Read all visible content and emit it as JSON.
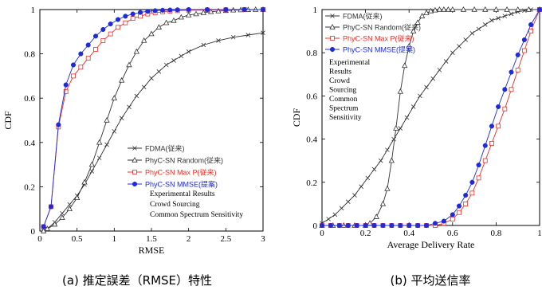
{
  "colors": {
    "black": "#000000",
    "gray": "#333333",
    "red": "#e8302a",
    "blue": "#1f2bd8",
    "axis": "#000000"
  },
  "chart_data": [
    {
      "type": "line",
      "caption": "(a) 推定誤差（RMSE）特性",
      "xlabel": "RMSE",
      "ylabel": "CDF",
      "xlim": [
        0,
        3
      ],
      "ylim": [
        0,
        1
      ],
      "x_ticks": [
        "0",
        "0.5",
        "1",
        "1.5",
        "2",
        "2.5",
        "3"
      ],
      "y_ticks": [
        "0",
        "0.2",
        "0.4",
        "0.6",
        "0.8",
        "1"
      ],
      "legend_position": "center-right",
      "annotation": [
        "Experimental Results",
        "Crowd Sourcing",
        "Common Spectrum Sensitivity"
      ],
      "series": [
        {
          "name": "FDMA(従来)",
          "color": "#333333",
          "marker": "x",
          "x": [
            0.05,
            0.1,
            0.2,
            0.3,
            0.4,
            0.5,
            0.6,
            0.7,
            0.8,
            0.9,
            1.0,
            1.1,
            1.2,
            1.3,
            1.4,
            1.5,
            1.6,
            1.7,
            1.8,
            1.9,
            2.0,
            2.2,
            2.4,
            2.6,
            2.8,
            3.0
          ],
          "y": [
            0.0,
            0.01,
            0.04,
            0.08,
            0.12,
            0.16,
            0.21,
            0.27,
            0.33,
            0.39,
            0.45,
            0.51,
            0.56,
            0.61,
            0.65,
            0.69,
            0.72,
            0.75,
            0.77,
            0.79,
            0.81,
            0.84,
            0.86,
            0.875,
            0.885,
            0.895
          ]
        },
        {
          "name": "PhyC-SN Random(従来)",
          "color": "#333333",
          "marker": "triangle",
          "x": [
            0.05,
            0.1,
            0.2,
            0.3,
            0.4,
            0.5,
            0.6,
            0.7,
            0.8,
            0.9,
            1.0,
            1.1,
            1.2,
            1.3,
            1.4,
            1.5,
            1.6,
            1.7,
            1.8,
            1.9,
            2.0,
            2.1,
            2.2,
            2.3,
            2.4,
            2.5,
            2.6,
            2.7,
            2.8,
            2.9,
            3.0
          ],
          "y": [
            0.0,
            0.01,
            0.03,
            0.06,
            0.1,
            0.15,
            0.22,
            0.3,
            0.4,
            0.5,
            0.6,
            0.68,
            0.75,
            0.81,
            0.86,
            0.89,
            0.92,
            0.94,
            0.95,
            0.965,
            0.975,
            0.98,
            0.985,
            0.99,
            0.993,
            0.995,
            0.997,
            0.998,
            0.999,
            1.0,
            1.0
          ]
        },
        {
          "name": "PhyC-SN Max P(従来)",
          "color": "#e8302a",
          "marker": "square",
          "x": [
            0.05,
            0.15,
            0.25,
            0.35,
            0.45,
            0.55,
            0.65,
            0.75,
            0.85,
            0.95,
            1.05,
            1.15,
            1.25,
            1.35,
            1.45,
            1.55,
            1.65,
            1.75,
            1.85,
            2.0,
            2.25,
            2.5,
            2.75,
            3.0
          ],
          "y": [
            0.02,
            0.11,
            0.47,
            0.63,
            0.7,
            0.74,
            0.78,
            0.82,
            0.86,
            0.89,
            0.92,
            0.94,
            0.96,
            0.97,
            0.98,
            0.985,
            0.99,
            0.993,
            0.995,
            0.997,
            0.998,
            0.999,
            1.0,
            1.0
          ]
        },
        {
          "name": "PhyC-SN MMSE(提案)",
          "color": "#1f2bd8",
          "marker": "dot",
          "x": [
            0.05,
            0.15,
            0.25,
            0.35,
            0.45,
            0.55,
            0.65,
            0.75,
            0.85,
            0.95,
            1.05,
            1.15,
            1.25,
            1.35,
            1.45,
            1.55,
            1.65,
            1.75,
            1.85,
            2.0,
            2.25,
            2.5,
            2.75,
            3.0
          ],
          "y": [
            0.02,
            0.11,
            0.48,
            0.66,
            0.75,
            0.8,
            0.84,
            0.88,
            0.91,
            0.935,
            0.955,
            0.97,
            0.98,
            0.987,
            0.992,
            0.995,
            0.997,
            0.998,
            0.999,
            1.0,
            1.0,
            1.0,
            1.0,
            1.0
          ]
        }
      ]
    },
    {
      "type": "line",
      "caption": "(b) 平均送信率",
      "xlabel": "Average Delivery Rate",
      "ylabel": "CDF",
      "xlim": [
        0,
        1
      ],
      "ylim": [
        0,
        1
      ],
      "x_ticks": [
        "0",
        "0.2",
        "0.4",
        "0.6",
        "0.8",
        "1"
      ],
      "y_ticks": [
        "0",
        "0.2",
        "0.4",
        "0.6",
        "0.8",
        "1"
      ],
      "legend_position": "top-left",
      "annotation": [
        "Experimental",
        "Results",
        "Crowd",
        "Sourcing",
        "Common",
        "Spectrum",
        "Sensitivity"
      ],
      "series": [
        {
          "name": "FDMA(従来)",
          "color": "#333333",
          "marker": "x",
          "x": [
            0.0,
            0.03,
            0.06,
            0.09,
            0.12,
            0.15,
            0.18,
            0.21,
            0.24,
            0.27,
            0.3,
            0.33,
            0.36,
            0.39,
            0.42,
            0.45,
            0.48,
            0.51,
            0.54,
            0.57,
            0.6,
            0.63,
            0.66,
            0.69,
            0.72,
            0.75,
            0.78,
            0.81,
            0.84,
            0.87,
            0.9,
            0.93,
            0.96,
            1.0
          ],
          "y": [
            0.01,
            0.03,
            0.05,
            0.08,
            0.11,
            0.14,
            0.18,
            0.22,
            0.26,
            0.3,
            0.35,
            0.4,
            0.45,
            0.5,
            0.55,
            0.6,
            0.64,
            0.68,
            0.72,
            0.76,
            0.8,
            0.83,
            0.86,
            0.89,
            0.91,
            0.93,
            0.95,
            0.96,
            0.97,
            0.98,
            0.99,
            0.995,
            1.0,
            1.0
          ]
        },
        {
          "name": "PhyC-SN Random(従来)",
          "color": "#333333",
          "marker": "triangle",
          "x": [
            0.0,
            0.05,
            0.1,
            0.15,
            0.2,
            0.22,
            0.25,
            0.28,
            0.3,
            0.32,
            0.34,
            0.36,
            0.38,
            0.4,
            0.42,
            0.44,
            0.46,
            0.48,
            0.5,
            0.52,
            0.54,
            0.56,
            0.58,
            0.6,
            0.65,
            0.7,
            0.75,
            0.8,
            0.85,
            0.9,
            0.95,
            1.0
          ],
          "y": [
            0.0,
            0.0,
            0.0,
            0.0,
            0.0,
            0.01,
            0.04,
            0.1,
            0.17,
            0.3,
            0.45,
            0.62,
            0.74,
            0.83,
            0.9,
            0.94,
            0.97,
            0.985,
            0.993,
            0.997,
            1.0,
            1.0,
            1.0,
            1.0,
            1.0,
            1.0,
            1.0,
            1.0,
            1.0,
            1.0,
            1.0,
            1.0
          ]
        },
        {
          "name": "PhyC-SN Max P(従来)",
          "color": "#e8302a",
          "marker": "square",
          "x": [
            0.0,
            0.04,
            0.08,
            0.12,
            0.16,
            0.2,
            0.24,
            0.28,
            0.32,
            0.36,
            0.4,
            0.44,
            0.48,
            0.52,
            0.56,
            0.6,
            0.63,
            0.66,
            0.69,
            0.72,
            0.75,
            0.78,
            0.81,
            0.84,
            0.87,
            0.9,
            0.93,
            0.96,
            1.0
          ],
          "y": [
            0.0,
            0.0,
            0.0,
            0.0,
            0.0,
            0.0,
            0.0,
            0.0,
            0.0,
            0.0,
            0.0,
            0.0,
            0.0,
            0.0,
            0.01,
            0.03,
            0.06,
            0.1,
            0.15,
            0.22,
            0.3,
            0.38,
            0.46,
            0.54,
            0.63,
            0.72,
            0.81,
            0.9,
            1.0
          ]
        },
        {
          "name": "PhyC-SN MMSE(提案)",
          "color": "#1f2bd8",
          "marker": "dot",
          "x": [
            0.0,
            0.04,
            0.08,
            0.12,
            0.16,
            0.2,
            0.24,
            0.28,
            0.32,
            0.36,
            0.4,
            0.44,
            0.48,
            0.52,
            0.56,
            0.6,
            0.63,
            0.66,
            0.69,
            0.72,
            0.75,
            0.78,
            0.81,
            0.84,
            0.87,
            0.9,
            0.93,
            0.96,
            1.0
          ],
          "y": [
            0.0,
            0.0,
            0.0,
            0.0,
            0.0,
            0.0,
            0.0,
            0.0,
            0.0,
            0.0,
            0.0,
            0.0,
            0.0,
            0.01,
            0.02,
            0.05,
            0.09,
            0.14,
            0.2,
            0.28,
            0.37,
            0.46,
            0.55,
            0.63,
            0.71,
            0.79,
            0.86,
            0.93,
            1.0
          ]
        }
      ]
    }
  ]
}
